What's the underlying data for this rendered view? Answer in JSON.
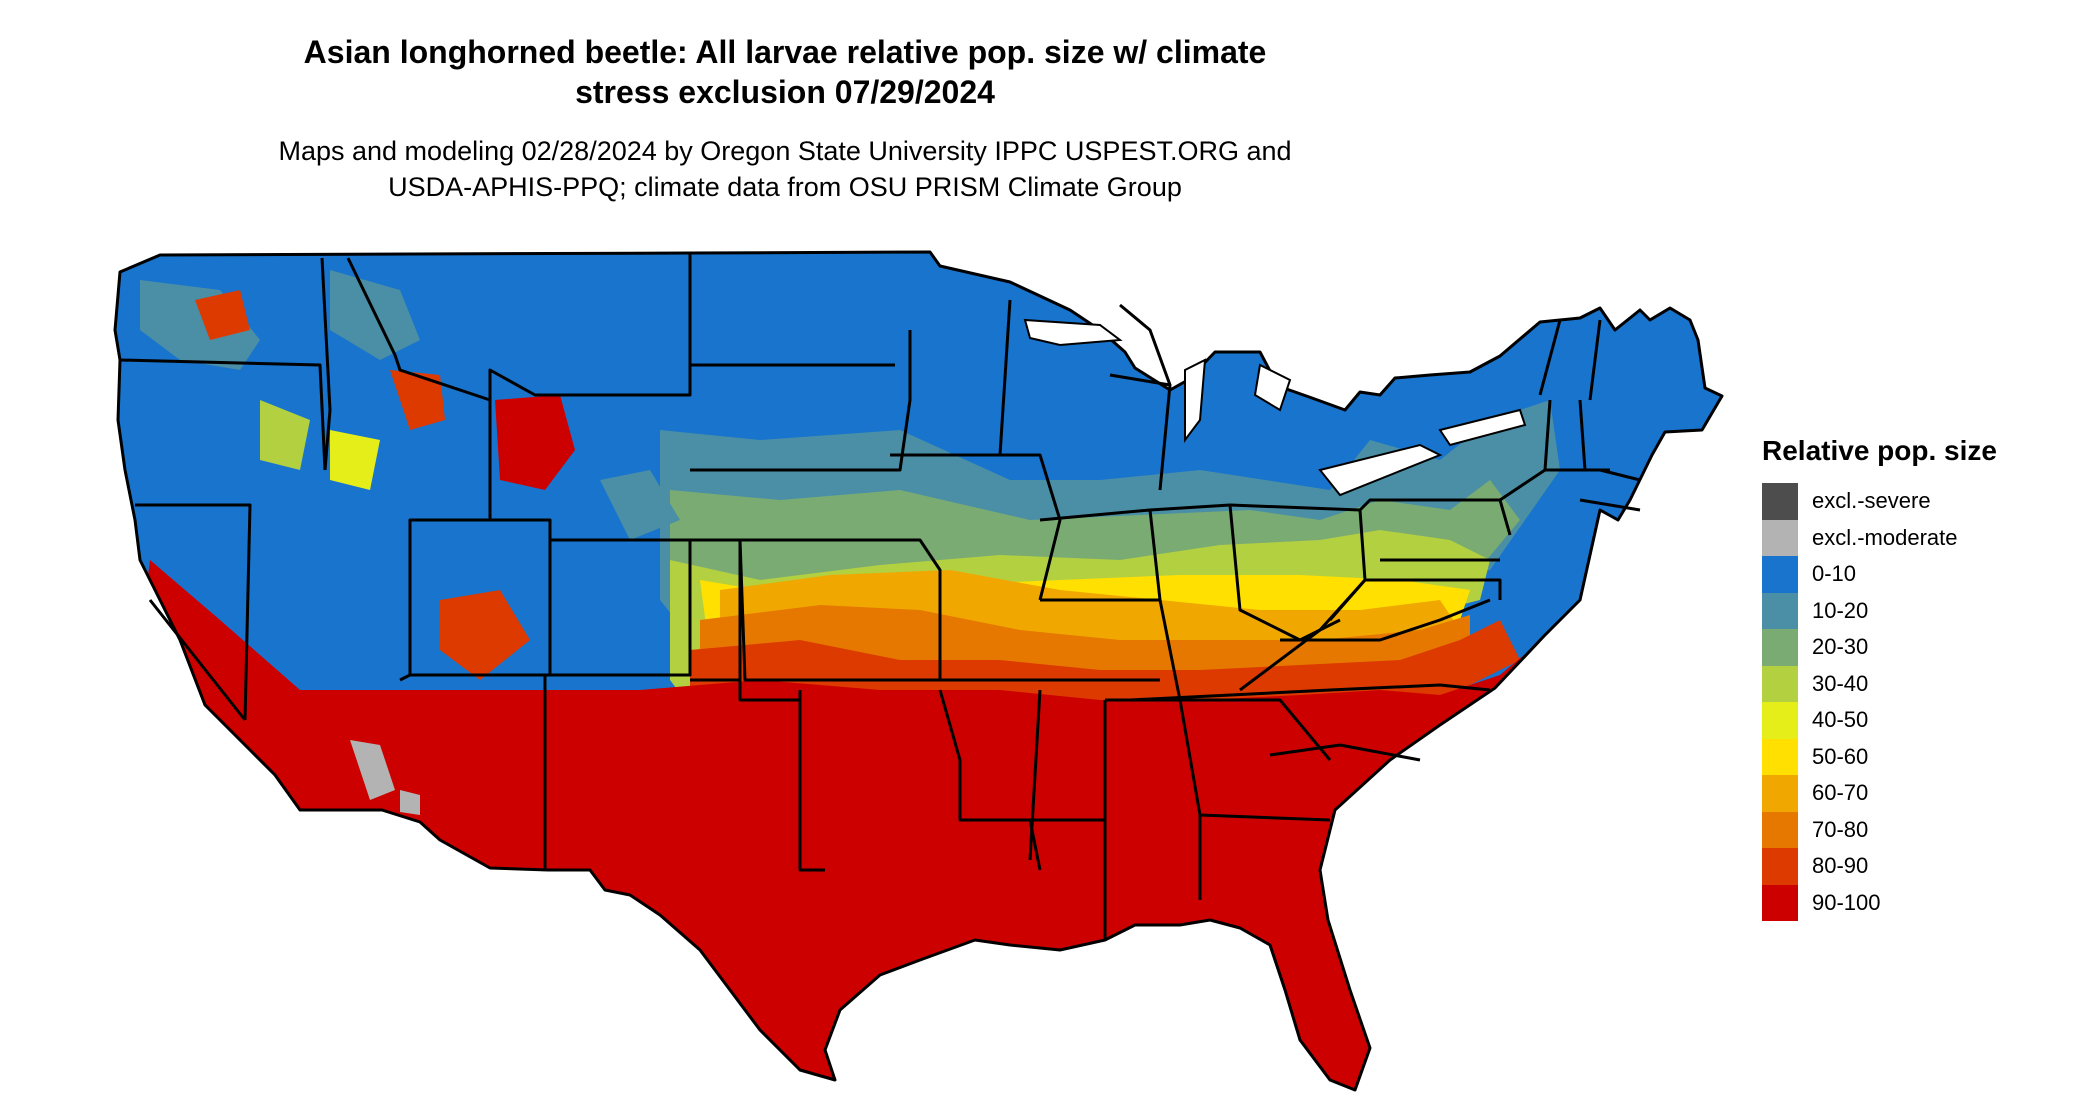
{
  "title": {
    "line1": "Asian longhorned beetle: All larvae relative pop. size w/ climate",
    "line2": "stress exclusion 07/29/2024"
  },
  "subtitle": {
    "line1": "Maps and modeling 02/28/2024 by Oregon State University IPPC USPEST.ORG and",
    "line2": "USDA-APHIS-PPQ; climate data from OSU PRISM Climate Group"
  },
  "legend": {
    "title": "Relative pop. size",
    "items": [
      {
        "label": "excl.-severe",
        "color": "#4d4d4d"
      },
      {
        "label": "excl.-moderate",
        "color": "#b3b3b3"
      },
      {
        "label": "0-10",
        "color": "#1874cd"
      },
      {
        "label": "10-20",
        "color": "#4a8fa5"
      },
      {
        "label": "20-30",
        "color": "#7aab72"
      },
      {
        "label": "30-40",
        "color": "#b3d040"
      },
      {
        "label": "40-50",
        "color": "#e6ee1a"
      },
      {
        "label": "50-60",
        "color": "#ffe000"
      },
      {
        "label": "60-70",
        "color": "#f0a800"
      },
      {
        "label": "70-80",
        "color": "#e67800"
      },
      {
        "label": "80-90",
        "color": "#dd3a00"
      },
      {
        "label": "90-100",
        "color": "#cd0000"
      }
    ]
  }
}
